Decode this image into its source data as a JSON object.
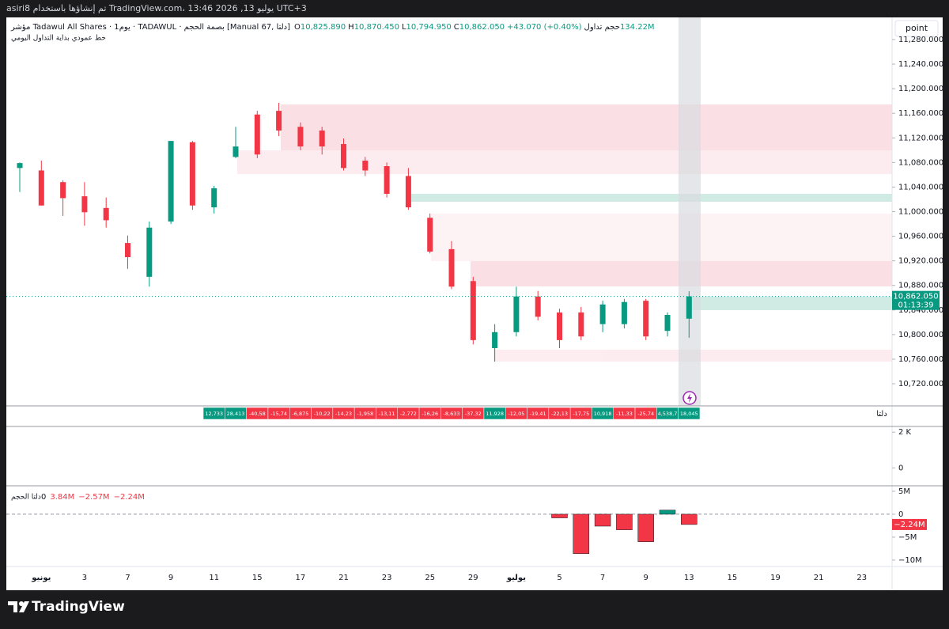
{
  "header": {
    "title": "asiri8 تم إنشاؤها باستخدام TradingView.com، يوليو 13, 2026 13:46 UTC+3"
  },
  "toolbar": {
    "button": "point"
  },
  "footer": {
    "logo": "TradingView"
  },
  "chart_data": [
    {
      "type": "candlestick",
      "legend": {
        "symbol": "مؤشر Tadawul All Shares · 1يوم · TADAWUL · بصمة الحجم [Manual 67, دلتا]",
        "items": [
          {
            "key": "O",
            "value": "10,825.890"
          },
          {
            "key": "H",
            "value": "10,870.450"
          },
          {
            "key": "L",
            "value": "10,794.950"
          },
          {
            "key": "C",
            "value": "10,862.050"
          }
        ],
        "change": "+43.070 (+0.40%)",
        "volume_label": "حجم تداول",
        "volume": "134.22M"
      },
      "subtitle": "خط عمودي بداية التداول اليومي",
      "categories": [
        null,
        "يونيو",
        null,
        "3",
        null,
        "7",
        null,
        "9",
        null,
        "11",
        null,
        "15",
        null,
        "17",
        null,
        "21",
        null,
        "23",
        null,
        "25",
        null,
        "29",
        null,
        "يوليو",
        null,
        "5",
        null,
        "7",
        null,
        "9",
        null,
        "13",
        null,
        "15",
        null,
        "19",
        null,
        "21",
        null,
        "23"
      ],
      "open": [
        11071,
        11067,
        11048,
        11025,
        11006,
        10949,
        10894,
        10984,
        11113,
        11007,
        11089,
        11158,
        11164,
        11138,
        11132,
        11110,
        11083,
        11074,
        11058,
        10990,
        10939,
        10887,
        10778,
        10804,
        10862,
        10836,
        10836,
        10817,
        10817,
        10855,
        10806,
        10825.89,
        null,
        null,
        null,
        null,
        null,
        null,
        null,
        null
      ],
      "high": [
        11080,
        11083,
        11051,
        11048,
        11023,
        10961,
        10984,
        11115,
        11115,
        11042,
        11138,
        11164,
        11177,
        11145,
        11138,
        11119,
        11089,
        11080,
        11071,
        10997,
        10952,
        10894,
        10817,
        10878,
        10871,
        10842,
        10845,
        10855,
        10858,
        10858,
        10836,
        10870.45,
        null,
        null,
        null,
        null,
        null,
        null,
        null,
        null
      ],
      "low": [
        11032,
        11010,
        10993,
        10977,
        10974,
        10907,
        10878,
        10980,
        11003,
        10997,
        11087,
        11087,
        11123,
        11100,
        11093,
        11067,
        11058,
        11023,
        11003,
        10932,
        10874,
        10784,
        10756,
        10797,
        10823,
        10778,
        10791,
        10804,
        10810,
        10791,
        10797,
        10794.95,
        null,
        null,
        null,
        null,
        null,
        null,
        null,
        null
      ],
      "close": [
        11079,
        11010,
        11022,
        10999,
        10986,
        10926,
        10974,
        11115,
        11010,
        11038,
        11106,
        11093,
        11132,
        11106,
        11106,
        11071,
        11067,
        11029,
        11007,
        10935,
        10878,
        10791,
        10804,
        10862,
        10829,
        10791,
        10797,
        10849,
        10853,
        10797,
        10832,
        10862.05,
        null,
        null,
        null,
        null,
        null,
        null,
        null,
        null
      ],
      "up_color": "#089981",
      "down_color": "#f23645",
      "last_price_label": "10,862.050",
      "countdown": "01:13:39",
      "ylim": [
        10684,
        11316
      ],
      "yticks": [
        {
          "value": 11280,
          "label": "11,280.000"
        },
        {
          "value": 11240,
          "label": "11,240.000"
        },
        {
          "value": 11200,
          "label": "11,200.000"
        },
        {
          "value": 11160,
          "label": "11,160.000"
        },
        {
          "value": 11120,
          "label": "11,120.000"
        },
        {
          "value": 11080,
          "label": "11,080.000"
        },
        {
          "value": 11040,
          "label": "11,040.000"
        },
        {
          "value": 11000,
          "label": "11,000.000"
        },
        {
          "value": 10960,
          "label": "10,960.000"
        },
        {
          "value": 10920,
          "label": "10,920.000"
        },
        {
          "value": 10880,
          "label": "10,880.000"
        },
        {
          "value": 10840,
          "label": "10,840.000"
        },
        {
          "value": 10800,
          "label": "10,800.000"
        },
        {
          "value": 10760,
          "label": "10,760.000"
        },
        {
          "value": 10720,
          "label": "10,720.000"
        }
      ]
    },
    {
      "type": "table",
      "name": "دلتا",
      "labels": [
        null,
        null,
        null,
        null,
        null,
        null,
        null,
        null,
        null,
        "12,733",
        "28,413",
        "-40,58",
        "-15,74",
        "-6,875",
        "-10,22",
        "-14,23",
        "-1,958",
        "-13,11",
        "-2,772",
        "-16,26",
        "-8,633",
        "-37,32",
        "11,928",
        "-12,05",
        "-19,41",
        "-22,13",
        "-17,75",
        "10,918",
        "-11,33",
        "-25,74",
        "4,538,7",
        "18,045",
        null,
        null,
        null,
        null,
        null,
        null,
        null,
        null
      ]
    },
    {
      "type": "line",
      "ylim": [
        -1000,
        2318
      ],
      "yticks": [
        {
          "value": 2000,
          "label": "2 K"
        },
        0
      ]
    },
    {
      "type": "bar",
      "title": "دلتا الحجم",
      "legend_values": [
        "0",
        "3.84M",
        "−2.57M",
        "−2.24M"
      ],
      "values": [
        null,
        null,
        null,
        null,
        null,
        null,
        null,
        null,
        null,
        null,
        null,
        null,
        null,
        null,
        null,
        null,
        null,
        null,
        null,
        null,
        null,
        null,
        null,
        null,
        null,
        -0.8,
        -8.6,
        -2.6,
        -3.4,
        -6.0,
        0.9,
        -2.24,
        null,
        null,
        null,
        null,
        null,
        null,
        null,
        null
      ],
      "value_labels": [
        null,
        null,
        null,
        null,
        null,
        null,
        null,
        null,
        null,
        null,
        null,
        null,
        null,
        null,
        null,
        null,
        null,
        null,
        null,
        null,
        null,
        null,
        null,
        null,
        null,
        null,
        null,
        null,
        null,
        null,
        null,
        "−2.24M",
        null,
        null,
        null,
        null,
        null,
        null,
        null,
        null
      ],
      "ylim": [
        -11.4,
        6.2
      ],
      "yticks": [
        {
          "value": 5,
          "label": "5M"
        },
        0,
        {
          "value": -5,
          "label": "−5M"
        },
        {
          "value": -10,
          "label": "−10M"
        }
      ]
    }
  ]
}
